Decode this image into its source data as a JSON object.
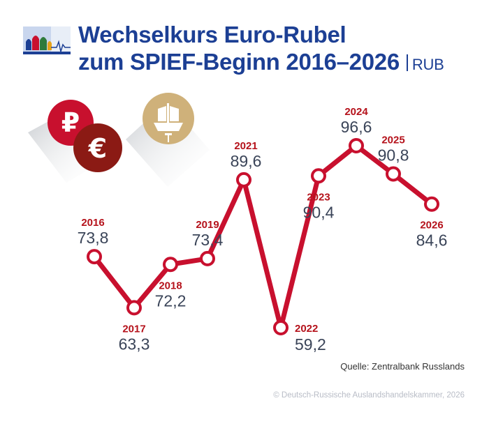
{
  "header": {
    "title_line1": "Wechselkurs Euro-Rubel",
    "title_line2": "zum SPIEF-Beginn 2016–2026",
    "unit": "RUB"
  },
  "colors": {
    "title": "#1c3f94",
    "line": "#c8102e",
    "year_label": "#b5121b",
    "value_label": "#3a4458",
    "ruble_coin": "#c8102e",
    "euro_coin": "#8b1a14",
    "ship_coin": "#cfb17a"
  },
  "icons": [
    "ruble-coin-icon",
    "euro-coin-icon",
    "ship-coin-icon",
    "kremlin-logo-icon"
  ],
  "chart_data": {
    "type": "line",
    "categories": [
      "2016",
      "2017",
      "2018",
      "2019",
      "2021",
      "2022",
      "2023",
      "2024",
      "2025",
      "2026"
    ],
    "values": [
      73.8,
      63.3,
      72.2,
      73.4,
      89.6,
      59.2,
      90.4,
      96.6,
      90.8,
      84.6
    ],
    "value_labels": [
      "73,8",
      "63,3",
      "72,2",
      "73,4",
      "89,6",
      "59,2",
      "90,4",
      "96,6",
      "90,8",
      "84,6"
    ],
    "label_position": [
      "above",
      "below",
      "below",
      "above",
      "above",
      "right",
      "below",
      "above",
      "above",
      "below"
    ],
    "ylim": [
      59.2,
      96.6
    ],
    "axes_visible": false,
    "grid": false
  },
  "footer": {
    "source": "Quelle: Zentralbank Russlands",
    "copyright": "© Deutsch-Russische Auslandshandelskammer, 2026"
  }
}
